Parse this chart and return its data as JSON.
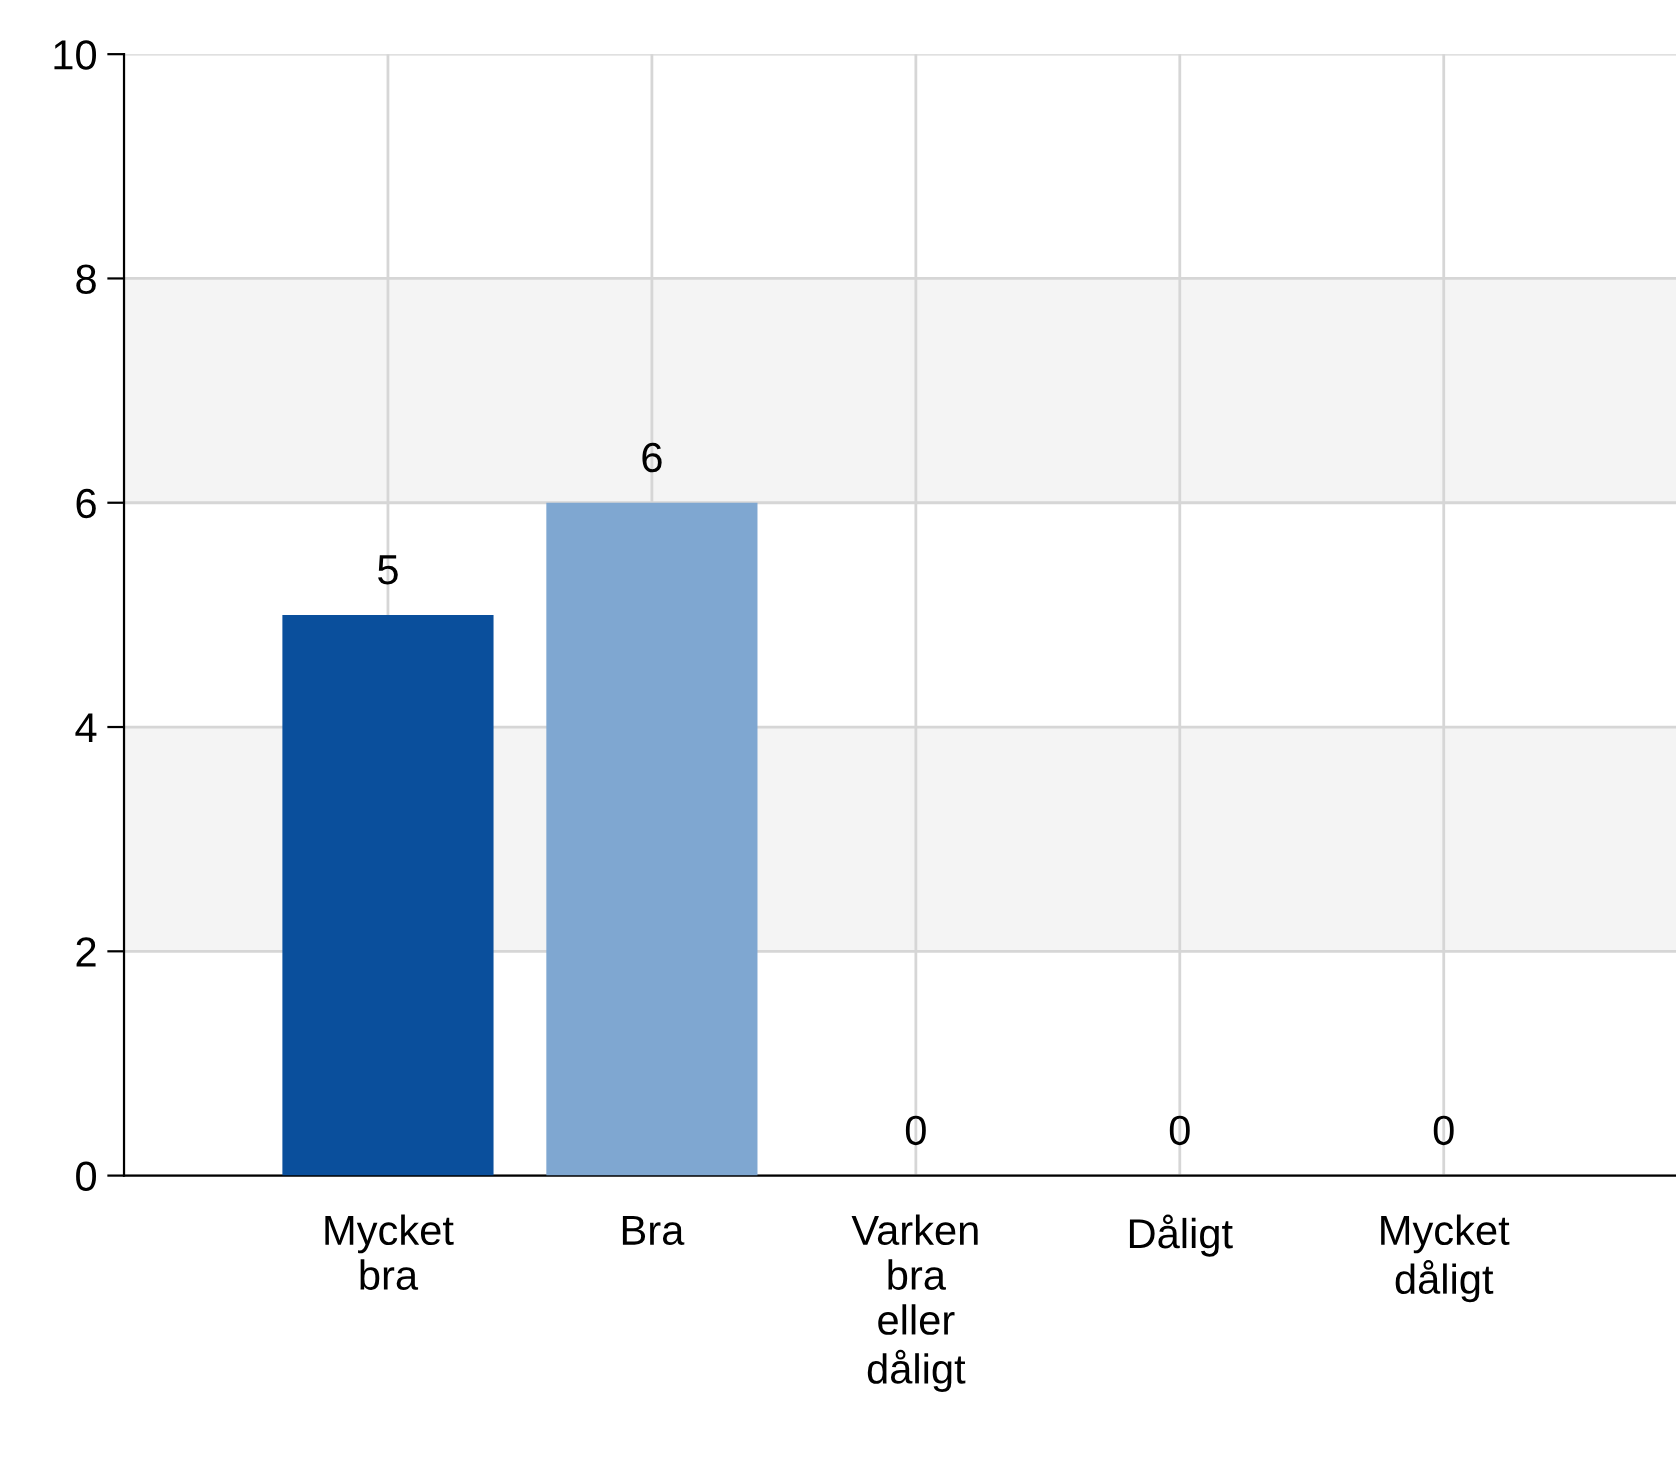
{
  "chart_data": {
    "type": "bar",
    "categories": [
      "Mycket\nbra",
      "Bra",
      "Varken\nbra\neller\ndåligt",
      "Dåligt",
      "Mycket\ndåligt"
    ],
    "values": [
      5,
      6,
      0,
      0,
      0
    ],
    "colors": [
      "#0a4f9c",
      "#7fa7d1",
      "#7fa7d1",
      "#7fa7d1",
      "#7fa7d1"
    ],
    "ylim": [
      0,
      10
    ],
    "yticks": [
      0,
      2,
      4,
      6,
      8,
      10
    ],
    "grid": true,
    "data_labels": true,
    "bands": [
      {
        "axis": "y",
        "from": 6,
        "to": 8,
        "color": "#f4f4f4"
      },
      {
        "axis": "y",
        "from": 2,
        "to": 4,
        "color": "#f4f4f4"
      }
    ]
  }
}
